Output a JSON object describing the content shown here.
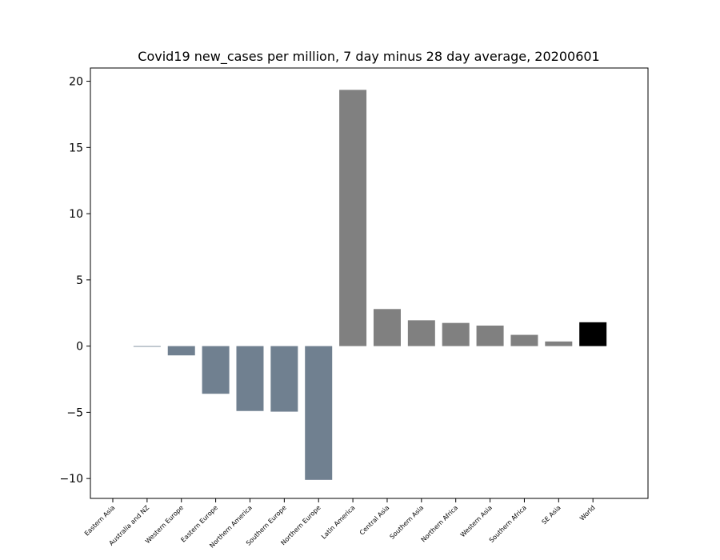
{
  "chart_data": {
    "type": "bar",
    "title": "Covid19 new_cases per million, 7 day minus 28 day average, 20200601",
    "xlabel": "",
    "ylabel": "",
    "ylim": [
      -11.5,
      21
    ],
    "yticks": [
      -10,
      -5,
      0,
      5,
      10,
      15,
      20
    ],
    "grid": false,
    "categories": [
      "Eastern Asia",
      "Australia and NZ",
      "Western Europe",
      "Eastern Europe",
      "Northern America",
      "Southern Europe",
      "Northern Europe",
      "Latin America",
      "Central Asia",
      "Southern Asia",
      "Northern Africa",
      "Western Asia",
      "Southern Africa",
      "SE Asia",
      "World"
    ],
    "values": [
      0.0,
      -0.05,
      -0.7,
      -3.6,
      -4.9,
      -4.95,
      -10.1,
      19.35,
      2.8,
      1.95,
      1.75,
      1.55,
      0.85,
      0.35,
      1.8
    ],
    "colors": [
      "#708090",
      "#708090",
      "#708090",
      "#708090",
      "#708090",
      "#708090",
      "#708090",
      "#808080",
      "#808080",
      "#808080",
      "#808080",
      "#808080",
      "#808080",
      "#808080",
      "#000000"
    ]
  }
}
